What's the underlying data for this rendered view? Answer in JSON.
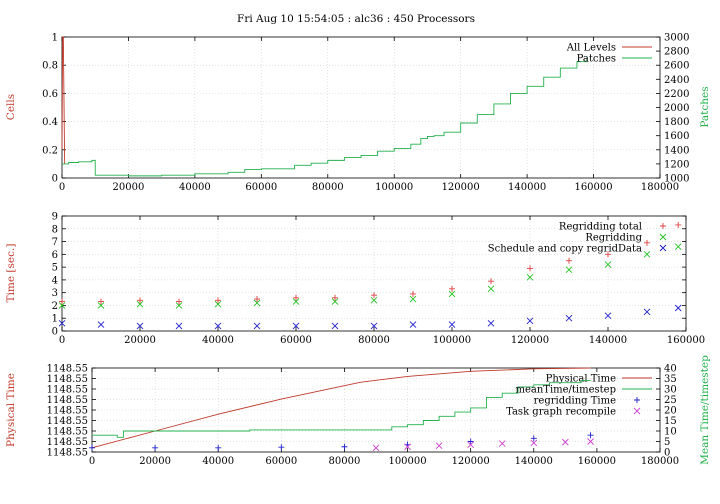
{
  "title": "Fri Aug 10 15:54:05 : alc36 : 450 Processors",
  "chart_data": [
    {
      "type": "line",
      "id": "cells",
      "ylabel": "Cells",
      "y2label": "Patches",
      "xlim": [
        0,
        180000
      ],
      "ylim": [
        0,
        1
      ],
      "y2lim": [
        1000,
        3000
      ],
      "xticks": [
        "0",
        "20000",
        "40000",
        "60000",
        "80000",
        "100000",
        "120000",
        "140000",
        "160000",
        "180000"
      ],
      "yticks": [
        "0",
        "0.2",
        "0.4",
        "0.6",
        "0.8",
        "1"
      ],
      "y2ticks": [
        "1000",
        "1200",
        "1400",
        "1600",
        "1800",
        "2000",
        "2200",
        "2400",
        "2600",
        "2800",
        "3000"
      ],
      "legend_position": "top-right",
      "series": [
        {
          "name": "All Levels",
          "axis": "left",
          "color": "#c0392b",
          "x": [
            0,
            200,
            400,
            800
          ],
          "y": [
            0.2,
            1.0,
            1.0,
            0.1
          ]
        },
        {
          "name": "Patches",
          "axis": "right",
          "color": "#22b14c",
          "x": [
            0,
            2000,
            5000,
            9000,
            10000,
            20000,
            30000,
            40000,
            50000,
            55000,
            60000,
            70000,
            75000,
            80000,
            85000,
            90000,
            95000,
            100000,
            105000,
            108000,
            110000,
            112000,
            115000,
            120000,
            125000,
            130000,
            135000,
            140000,
            145000,
            150000,
            155000,
            158000
          ],
          "y": [
            1200,
            1220,
            1230,
            1250,
            1040,
            1030,
            1040,
            1060,
            1080,
            1120,
            1130,
            1180,
            1210,
            1250,
            1290,
            1320,
            1380,
            1420,
            1480,
            1560,
            1590,
            1600,
            1650,
            1780,
            1900,
            2050,
            2200,
            2300,
            2430,
            2560,
            2650,
            2720
          ]
        }
      ]
    },
    {
      "type": "scatter",
      "id": "time",
      "ylabel": "Time [sec.]",
      "xlim": [
        0,
        160000
      ],
      "ylim": [
        0,
        9
      ],
      "xticks": [
        "0",
        "20000",
        "40000",
        "60000",
        "80000",
        "100000",
        "120000",
        "140000",
        "160000"
      ],
      "yticks": [
        "0",
        "1",
        "2",
        "3",
        "4",
        "5",
        "6",
        "7",
        "8",
        "9"
      ],
      "legend_position": "top-right",
      "series": [
        {
          "name": "Regridding total",
          "marker": "plus",
          "color": "#e04040",
          "x": [
            0,
            10000,
            20000,
            30000,
            40000,
            50000,
            60000,
            70000,
            80000,
            90000,
            100000,
            110000,
            120000,
            130000,
            140000,
            150000,
            158000
          ],
          "y": [
            2.3,
            2.3,
            2.4,
            2.3,
            2.4,
            2.5,
            2.6,
            2.6,
            2.8,
            2.9,
            3.3,
            3.9,
            4.9,
            5.5,
            6.0,
            6.9,
            8.3
          ]
        },
        {
          "name": "Regridding",
          "marker": "x",
          "color": "#22c422",
          "x": [
            0,
            10000,
            20000,
            30000,
            40000,
            50000,
            60000,
            70000,
            80000,
            90000,
            100000,
            110000,
            120000,
            130000,
            140000,
            150000,
            158000
          ],
          "y": [
            2.0,
            2.0,
            2.1,
            2.0,
            2.1,
            2.2,
            2.3,
            2.3,
            2.4,
            2.5,
            2.9,
            3.3,
            4.2,
            4.8,
            5.2,
            6.0,
            6.6
          ]
        },
        {
          "name": "Schedule and copy regridData",
          "marker": "x",
          "color": "#2020d0",
          "x": [
            0,
            10000,
            20000,
            30000,
            40000,
            50000,
            60000,
            70000,
            80000,
            90000,
            100000,
            110000,
            120000,
            130000,
            140000,
            150000,
            158000
          ],
          "y": [
            0.6,
            0.5,
            0.4,
            0.4,
            0.4,
            0.4,
            0.4,
            0.4,
            0.4,
            0.5,
            0.5,
            0.6,
            0.8,
            1.0,
            1.2,
            1.5,
            1.8
          ]
        }
      ]
    },
    {
      "type": "line",
      "id": "physical",
      "ylabel": "Physical Time",
      "y2label": "Mean Time/timestep",
      "xlim": [
        0,
        180000
      ],
      "ylim": [
        0,
        1
      ],
      "y2lim": [
        0,
        40
      ],
      "xticks": [
        "0",
        "20000",
        "40000",
        "60000",
        "80000",
        "100000",
        "120000",
        "140000",
        "160000",
        "180000"
      ],
      "yticks": [
        "1148.55",
        "1148.55",
        "1148.55",
        "1148.55",
        "1148.55",
        "1148.55",
        "1148.55",
        "1148.55",
        "1148.55"
      ],
      "y2ticks": [
        "0",
        "5",
        "10",
        "15",
        "20",
        "25",
        "30",
        "35",
        "40"
      ],
      "legend_position": "top-right",
      "series": [
        {
          "name": "Physical Time",
          "axis": "left",
          "style": "line",
          "color": "#c0392b",
          "x": [
            0,
            20000,
            40000,
            60000,
            85000,
            100000,
            120000,
            140000,
            158000
          ],
          "y": [
            0.05,
            0.25,
            0.45,
            0.63,
            0.83,
            0.9,
            0.96,
            0.99,
            1.0
          ]
        },
        {
          "name": "meanTime/timestep",
          "axis": "right",
          "style": "line",
          "color": "#22b14c",
          "x": [
            0,
            8000,
            10000,
            30000,
            50000,
            70000,
            90000,
            95000,
            100000,
            105000,
            110000,
            115000,
            120000,
            125000,
            130000,
            135000,
            140000,
            145000,
            150000,
            155000,
            158000
          ],
          "y": [
            8,
            7,
            10,
            10,
            10.5,
            10.5,
            10.5,
            12,
            13,
            15,
            17,
            19,
            21,
            26,
            28,
            31,
            32,
            33,
            33,
            34,
            34
          ]
        },
        {
          "name": "regridding Time",
          "axis": "right",
          "style": "plus",
          "color": "#2020d0",
          "x": [
            0,
            20000,
            40000,
            60000,
            80000,
            100000,
            120000,
            140000,
            158000
          ],
          "y": [
            2,
            2,
            2,
            2.3,
            2.5,
            3.5,
            5,
            6.5,
            8
          ]
        },
        {
          "name": "Task graph recompile",
          "axis": "right",
          "style": "x",
          "color": "#d040d0",
          "x": [
            90000,
            100000,
            110000,
            120000,
            130000,
            140000,
            150000,
            158000
          ],
          "y": [
            2,
            2.5,
            3,
            3.5,
            4,
            4.3,
            4.7,
            5
          ]
        }
      ]
    }
  ]
}
